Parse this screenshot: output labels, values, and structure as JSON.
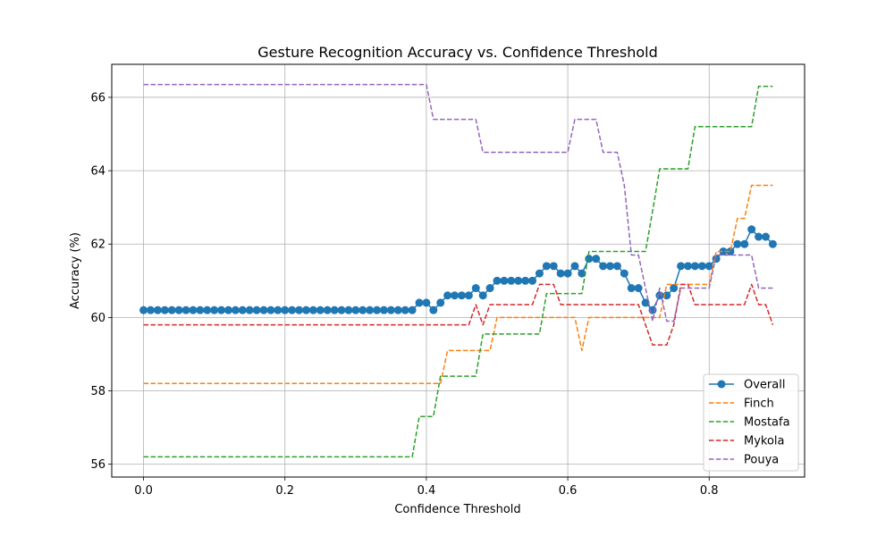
{
  "chart_data": {
    "type": "line",
    "title": "Gesture Recognition Accuracy vs. Confidence Threshold",
    "xlabel": "Confidence Threshold",
    "ylabel": "Accuracy (%)",
    "xlim": [
      -0.045,
      0.935
    ],
    "ylim": [
      55.65,
      66.9
    ],
    "xticks": [
      0.0,
      0.2,
      0.4,
      0.6,
      0.8
    ],
    "yticks": [
      56,
      58,
      60,
      62,
      64,
      66
    ],
    "grid": true,
    "legend_position": "lower right",
    "x": [
      0.0,
      0.01,
      0.02,
      0.03,
      0.04,
      0.05,
      0.06,
      0.07,
      0.08,
      0.09,
      0.1,
      0.11,
      0.12,
      0.13,
      0.14,
      0.15,
      0.16,
      0.17,
      0.18,
      0.19,
      0.2,
      0.21,
      0.22,
      0.23,
      0.24,
      0.25,
      0.26,
      0.27,
      0.28,
      0.29,
      0.3,
      0.31,
      0.32,
      0.33,
      0.34,
      0.35,
      0.36,
      0.37,
      0.38,
      0.39,
      0.4,
      0.41,
      0.42,
      0.43,
      0.44,
      0.45,
      0.46,
      0.47,
      0.48,
      0.49,
      0.5,
      0.51,
      0.52,
      0.53,
      0.54,
      0.55,
      0.56,
      0.57,
      0.58,
      0.59,
      0.6,
      0.61,
      0.62,
      0.63,
      0.64,
      0.65,
      0.66,
      0.67,
      0.68,
      0.69,
      0.7,
      0.71,
      0.72,
      0.73,
      0.74,
      0.75,
      0.76,
      0.77,
      0.78,
      0.79,
      0.8,
      0.81,
      0.82,
      0.83,
      0.84,
      0.85,
      0.86,
      0.87,
      0.88,
      0.89
    ],
    "series": [
      {
        "name": "Overall",
        "color": "#1f77b4",
        "style": "solid",
        "marker": "circle",
        "values": [
          60.2,
          60.2,
          60.2,
          60.2,
          60.2,
          60.2,
          60.2,
          60.2,
          60.2,
          60.2,
          60.2,
          60.2,
          60.2,
          60.2,
          60.2,
          60.2,
          60.2,
          60.2,
          60.2,
          60.2,
          60.2,
          60.2,
          60.2,
          60.2,
          60.2,
          60.2,
          60.2,
          60.2,
          60.2,
          60.2,
          60.2,
          60.2,
          60.2,
          60.2,
          60.2,
          60.2,
          60.2,
          60.2,
          60.2,
          60.4,
          60.4,
          60.2,
          60.4,
          60.6,
          60.6,
          60.6,
          60.6,
          60.8,
          60.6,
          60.8,
          61.0,
          61.0,
          61.0,
          61.0,
          61.0,
          61.0,
          61.2,
          61.4,
          61.4,
          61.2,
          61.2,
          61.4,
          61.2,
          61.6,
          61.6,
          61.4,
          61.4,
          61.4,
          61.2,
          60.8,
          60.8,
          60.4,
          60.2,
          60.6,
          60.6,
          60.8,
          61.4,
          61.4,
          61.4,
          61.4,
          61.4,
          61.6,
          61.8,
          61.8,
          62.0,
          62.0,
          62.4,
          62.2,
          62.2,
          62.0
        ]
      },
      {
        "name": "Finch",
        "color": "#ff7f0e",
        "style": "dashed",
        "values": [
          58.2,
          58.2,
          58.2,
          58.2,
          58.2,
          58.2,
          58.2,
          58.2,
          58.2,
          58.2,
          58.2,
          58.2,
          58.2,
          58.2,
          58.2,
          58.2,
          58.2,
          58.2,
          58.2,
          58.2,
          58.2,
          58.2,
          58.2,
          58.2,
          58.2,
          58.2,
          58.2,
          58.2,
          58.2,
          58.2,
          58.2,
          58.2,
          58.2,
          58.2,
          58.2,
          58.2,
          58.2,
          58.2,
          58.2,
          58.2,
          58.2,
          58.2,
          58.2,
          59.1,
          59.1,
          59.1,
          59.1,
          59.1,
          59.1,
          59.1,
          60.0,
          60.0,
          60.0,
          60.0,
          60.0,
          60.0,
          60.0,
          60.0,
          60.0,
          60.0,
          60.0,
          60.0,
          59.1,
          60.0,
          60.0,
          60.0,
          60.0,
          60.0,
          60.0,
          60.0,
          60.0,
          60.0,
          60.0,
          60.0,
          60.9,
          60.9,
          60.9,
          60.9,
          60.9,
          60.9,
          60.9,
          61.8,
          61.8,
          61.8,
          62.7,
          62.7,
          63.6,
          63.6,
          63.6,
          63.6
        ]
      },
      {
        "name": "Mostafa",
        "color": "#2ca02c",
        "style": "dashed",
        "values": [
          56.2,
          56.2,
          56.2,
          56.2,
          56.2,
          56.2,
          56.2,
          56.2,
          56.2,
          56.2,
          56.2,
          56.2,
          56.2,
          56.2,
          56.2,
          56.2,
          56.2,
          56.2,
          56.2,
          56.2,
          56.2,
          56.2,
          56.2,
          56.2,
          56.2,
          56.2,
          56.2,
          56.2,
          56.2,
          56.2,
          56.2,
          56.2,
          56.2,
          56.2,
          56.2,
          56.2,
          56.2,
          56.2,
          56.2,
          57.3,
          57.3,
          57.3,
          58.4,
          58.4,
          58.4,
          58.4,
          58.4,
          58.4,
          59.55,
          59.55,
          59.55,
          59.55,
          59.55,
          59.55,
          59.55,
          59.55,
          59.55,
          60.65,
          60.65,
          60.65,
          60.65,
          60.65,
          60.65,
          61.8,
          61.8,
          61.8,
          61.8,
          61.8,
          61.8,
          61.8,
          61.8,
          61.8,
          62.9,
          64.05,
          64.05,
          64.05,
          64.05,
          64.05,
          65.2,
          65.2,
          65.2,
          65.2,
          65.2,
          65.2,
          65.2,
          65.2,
          65.2,
          66.3,
          66.3,
          66.3
        ]
      },
      {
        "name": "Mykola",
        "color": "#d62728",
        "style": "dashed",
        "values": [
          59.8,
          59.8,
          59.8,
          59.8,
          59.8,
          59.8,
          59.8,
          59.8,
          59.8,
          59.8,
          59.8,
          59.8,
          59.8,
          59.8,
          59.8,
          59.8,
          59.8,
          59.8,
          59.8,
          59.8,
          59.8,
          59.8,
          59.8,
          59.8,
          59.8,
          59.8,
          59.8,
          59.8,
          59.8,
          59.8,
          59.8,
          59.8,
          59.8,
          59.8,
          59.8,
          59.8,
          59.8,
          59.8,
          59.8,
          59.8,
          59.8,
          59.8,
          59.8,
          59.8,
          59.8,
          59.8,
          59.8,
          60.35,
          59.8,
          60.35,
          60.35,
          60.35,
          60.35,
          60.35,
          60.35,
          60.35,
          60.9,
          60.9,
          60.9,
          60.35,
          60.35,
          60.35,
          60.35,
          60.35,
          60.35,
          60.35,
          60.35,
          60.35,
          60.35,
          60.35,
          60.35,
          59.8,
          59.25,
          59.25,
          59.25,
          59.8,
          60.9,
          60.9,
          60.35,
          60.35,
          60.35,
          60.35,
          60.35,
          60.35,
          60.35,
          60.35,
          60.9,
          60.35,
          60.35,
          59.8
        ]
      },
      {
        "name": "Pouya",
        "color": "#9467bd",
        "style": "dashed",
        "values": [
          66.35,
          66.35,
          66.35,
          66.35,
          66.35,
          66.35,
          66.35,
          66.35,
          66.35,
          66.35,
          66.35,
          66.35,
          66.35,
          66.35,
          66.35,
          66.35,
          66.35,
          66.35,
          66.35,
          66.35,
          66.35,
          66.35,
          66.35,
          66.35,
          66.35,
          66.35,
          66.35,
          66.35,
          66.35,
          66.35,
          66.35,
          66.35,
          66.35,
          66.35,
          66.35,
          66.35,
          66.35,
          66.35,
          66.35,
          66.35,
          66.35,
          65.4,
          65.4,
          65.4,
          65.4,
          65.4,
          65.4,
          65.4,
          64.5,
          64.5,
          64.5,
          64.5,
          64.5,
          64.5,
          64.5,
          64.5,
          64.5,
          64.5,
          64.5,
          64.5,
          64.5,
          65.4,
          65.4,
          65.4,
          65.4,
          64.5,
          64.5,
          64.5,
          63.6,
          61.7,
          61.7,
          60.8,
          59.9,
          60.8,
          59.9,
          59.9,
          60.8,
          60.8,
          60.8,
          60.8,
          60.8,
          61.7,
          61.7,
          61.7,
          61.7,
          61.7,
          61.7,
          60.8,
          60.8,
          60.8
        ]
      }
    ]
  }
}
